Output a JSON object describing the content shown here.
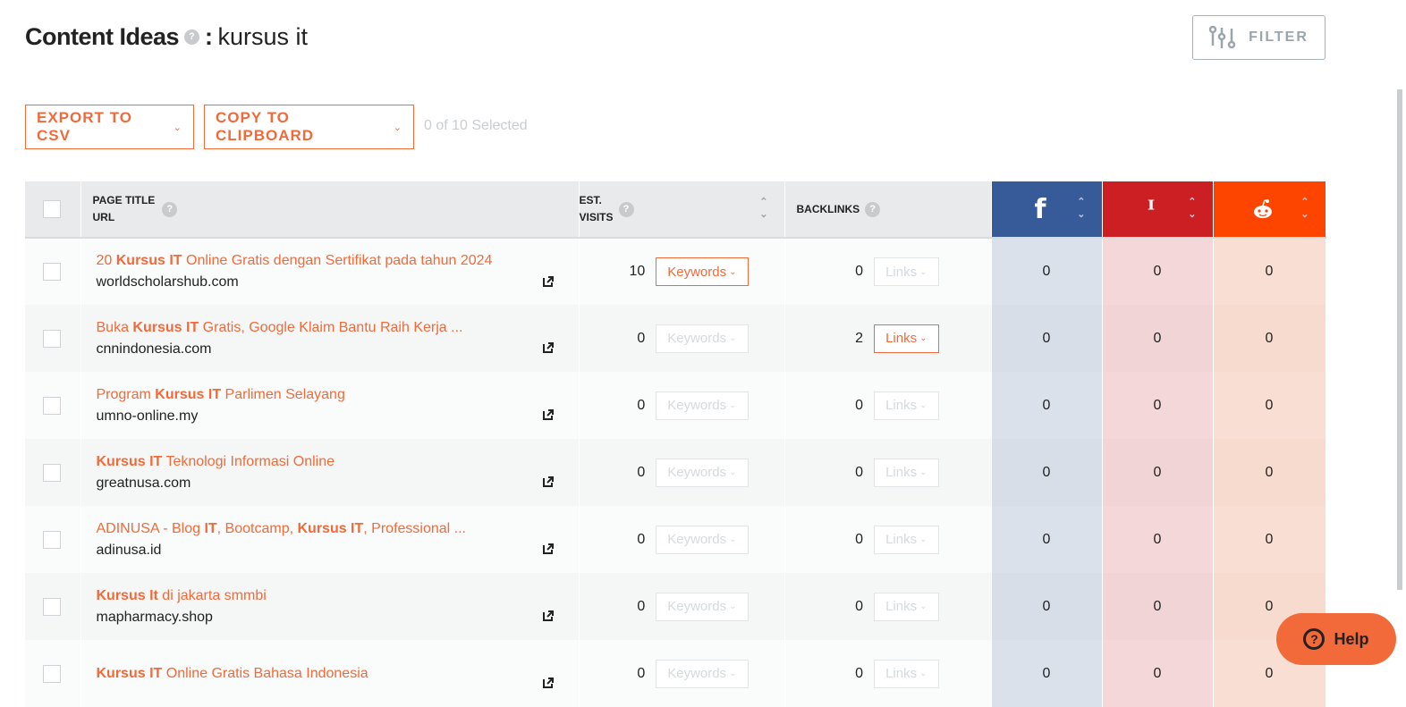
{
  "header": {
    "title": "Content Ideas",
    "separator": ":",
    "keyword": "kursus it",
    "help": "?"
  },
  "filter": {
    "label": "FILTER",
    "icon": "sliders-icon"
  },
  "toolbar": {
    "export": "EXPORT TO CSV",
    "copy": "COPY TO CLIPBOARD",
    "selected": "0 of 10 Selected"
  },
  "table": {
    "headers": {
      "page_title": "PAGE TITLE",
      "url": "URL",
      "visits1": "EST.",
      "visits2": "VISITS",
      "backlinks": "BACKLINKS",
      "help": "?"
    },
    "social_icons": [
      "facebook-icon",
      "pinterest-icon",
      "reddit-icon"
    ],
    "keywords_label": "Keywords",
    "links_label": "Links",
    "rows": [
      {
        "title": [
          [
            "20 ",
            0
          ],
          [
            "Kursus IT",
            1
          ],
          [
            " Online Gratis dengan Sertifikat pada tahun 2024",
            0
          ]
        ],
        "url": "worldscholarshub.com",
        "visits": "10",
        "backlinks": "0",
        "fb": "0",
        "pin": "0",
        "reddit": "0",
        "kw_on": true,
        "links_on": false
      },
      {
        "title": [
          [
            "Buka ",
            0
          ],
          [
            "Kursus IT",
            1
          ],
          [
            " Gratis, Google Klaim Bantu Raih Kerja ...",
            0
          ]
        ],
        "url": "cnnindonesia.com",
        "visits": "0",
        "backlinks": "2",
        "fb": "0",
        "pin": "0",
        "reddit": "0",
        "kw_on": false,
        "links_on": true
      },
      {
        "title": [
          [
            "Program ",
            0
          ],
          [
            "Kursus IT",
            1
          ],
          [
            " Parlimen Selayang",
            0
          ]
        ],
        "url": "umno-online.my",
        "visits": "0",
        "backlinks": "0",
        "fb": "0",
        "pin": "0",
        "reddit": "0",
        "kw_on": false,
        "links_on": false
      },
      {
        "title": [
          [
            "Kursus IT",
            1
          ],
          [
            " Teknologi Informasi Online",
            0
          ]
        ],
        "url": "greatnusa.com",
        "visits": "0",
        "backlinks": "0",
        "fb": "0",
        "pin": "0",
        "reddit": "0",
        "kw_on": false,
        "links_on": false
      },
      {
        "title": [
          [
            "ADINUSA - Blog ",
            0
          ],
          [
            "IT",
            1
          ],
          [
            ", Bootcamp, ",
            0
          ],
          [
            "Kursus IT",
            1
          ],
          [
            ", Professional ...",
            0
          ]
        ],
        "url": "adinusa.id",
        "visits": "0",
        "backlinks": "0",
        "fb": "0",
        "pin": "0",
        "reddit": "0",
        "kw_on": false,
        "links_on": false
      },
      {
        "title": [
          [
            "Kursus It",
            1
          ],
          [
            " di jakarta smmbi",
            0
          ]
        ],
        "url": "mapharmacy.shop",
        "visits": "0",
        "backlinks": "0",
        "fb": "0",
        "pin": "0",
        "reddit": "0",
        "kw_on": false,
        "links_on": false
      },
      {
        "title": [
          [
            "Kursus IT",
            1
          ],
          [
            " Online Gratis Bahasa Indonesia",
            0
          ]
        ],
        "url": "",
        "visits": "0",
        "backlinks": "0",
        "fb": "0",
        "pin": "0",
        "reddit": "0",
        "kw_on": false,
        "links_on": false
      }
    ]
  },
  "help_button": {
    "label": "Help",
    "icon": "?"
  },
  "colors": {
    "accent": "#f26a3a",
    "facebook": "#375a98",
    "pinterest": "#cc1f24",
    "reddit": "#fe4500"
  }
}
